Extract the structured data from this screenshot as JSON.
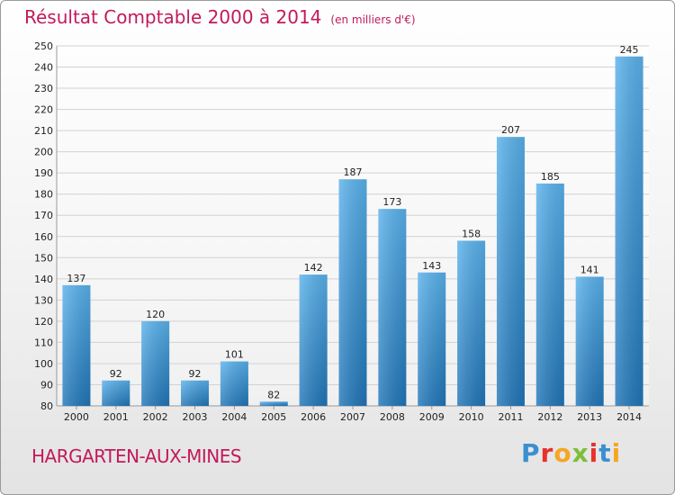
{
  "colors": {
    "title": "#c21a5b",
    "bar_light": "#5ab2ec",
    "bar_dark": "#2176b8",
    "grid": "#d2d2d2",
    "axis_text": "#222222"
  },
  "chart_data": {
    "type": "bar",
    "title": "Résultat Comptable 2000 à 2014",
    "subtitle": "(en milliers d'€)",
    "xlabel": "",
    "ylabel": "",
    "categories": [
      "2000",
      "2001",
      "2002",
      "2003",
      "2004",
      "2005",
      "2006",
      "2007",
      "2008",
      "2009",
      "2010",
      "2011",
      "2012",
      "2013",
      "2014"
    ],
    "values": [
      137,
      92,
      120,
      92,
      101,
      82,
      142,
      187,
      173,
      143,
      158,
      207,
      185,
      141,
      245
    ],
    "ylim": [
      80,
      250
    ],
    "yticks": [
      80,
      90,
      100,
      110,
      120,
      130,
      140,
      150,
      160,
      170,
      180,
      190,
      200,
      210,
      220,
      230,
      240,
      250
    ],
    "grid": true
  },
  "footer": {
    "commune": "HARGARTEN-AUX-MINES",
    "logo_text": "Proxiti",
    "logo_letter_colors": [
      "#3a8fd0",
      "#e8312a",
      "#f5a623",
      "#7cbf3a",
      "#e8312a",
      "#3a8fd0",
      "#f5a623"
    ]
  }
}
